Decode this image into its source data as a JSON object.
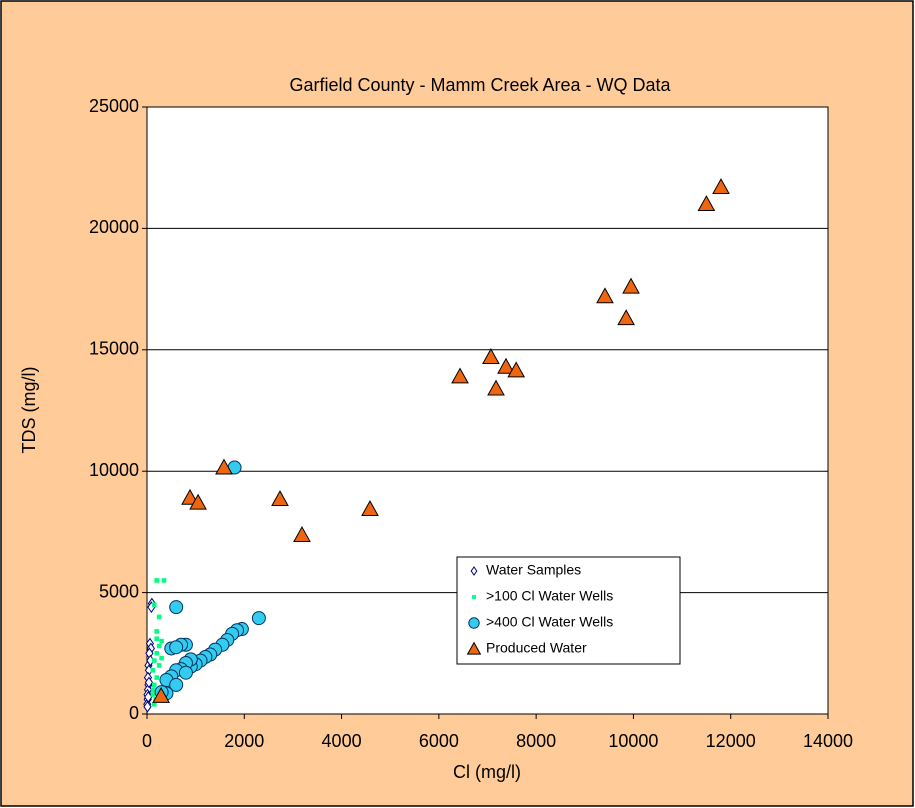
{
  "chart_data": {
    "type": "scatter",
    "title": "Garfield County - Mamm Creek Area - WQ Data",
    "x_label": "Cl (mg/l)",
    "y_label": "TDS (mg/l)",
    "xlim": [
      0,
      14000
    ],
    "xticks": [
      0,
      2000,
      4000,
      6000,
      8000,
      10000,
      12000,
      14000
    ],
    "ylim": [
      0,
      25000
    ],
    "yticks": [
      0,
      5000,
      10000,
      15000,
      20000,
      25000
    ],
    "grid": true,
    "legend": "right",
    "series": [
      {
        "name": "Water Samples",
        "marker": "diamond",
        "color": "#ffffff",
        "edge": "#000080",
        "x": [
          100,
          90,
          60,
          80,
          50,
          30,
          40,
          20,
          30,
          20,
          10,
          15,
          5,
          10,
          40,
          70,
          25
        ],
        "y": [
          4550,
          4400,
          2900,
          2700,
          2500,
          2000,
          1800,
          1500,
          1200,
          1000,
          800,
          600,
          400,
          300,
          1300,
          2200,
          700
        ]
      },
      {
        "name": ">100 Cl Water Wells",
        "marker": "square",
        "color": "#00ff80",
        "edge": "#00ff80",
        "x": [
          200,
          350,
          150,
          250,
          200,
          300,
          250,
          200,
          150,
          300,
          120,
          200,
          150,
          250,
          120,
          180,
          150,
          250,
          200,
          130
        ],
        "y": [
          5500,
          5500,
          4500,
          4000,
          3400,
          3000,
          2800,
          2500,
          2200,
          2300,
          1800,
          1500,
          1200,
          1000,
          800,
          600,
          400,
          2000,
          3100,
          1000
        ]
      },
      {
        "name": ">400 Cl Water Wells",
        "marker": "circle",
        "color": "#33ccee",
        "edge": "#003366",
        "x": [
          1800,
          600,
          2300,
          1950,
          1850,
          1750,
          1650,
          1550,
          1400,
          1300,
          1200,
          1100,
          1000,
          900,
          800,
          700,
          500,
          600,
          900,
          800,
          700,
          600,
          500,
          400,
          800,
          600,
          400,
          300
        ],
        "y": [
          10150,
          4400,
          3950,
          3500,
          3450,
          3300,
          3050,
          2850,
          2650,
          2450,
          2350,
          2200,
          2050,
          1950,
          2850,
          2850,
          2700,
          2750,
          2250,
          2100,
          1850,
          1800,
          1550,
          1400,
          1700,
          1200,
          850,
          900
        ]
      },
      {
        "name": "Produced Water",
        "marker": "triangle",
        "color": "#ee6611",
        "edge": "#000000",
        "x": [
          11800,
          11500,
          9950,
          9415,
          9850,
          7070,
          7380,
          7590,
          7175,
          6435,
          1583,
          884,
          1050,
          2734,
          3186,
          4584,
          290
        ],
        "y": [
          21700,
          21000,
          17600,
          17200,
          16300,
          14700,
          14300,
          14150,
          13400,
          13900,
          10150,
          8900,
          8700,
          8850,
          7370,
          8440,
          740
        ]
      }
    ]
  }
}
